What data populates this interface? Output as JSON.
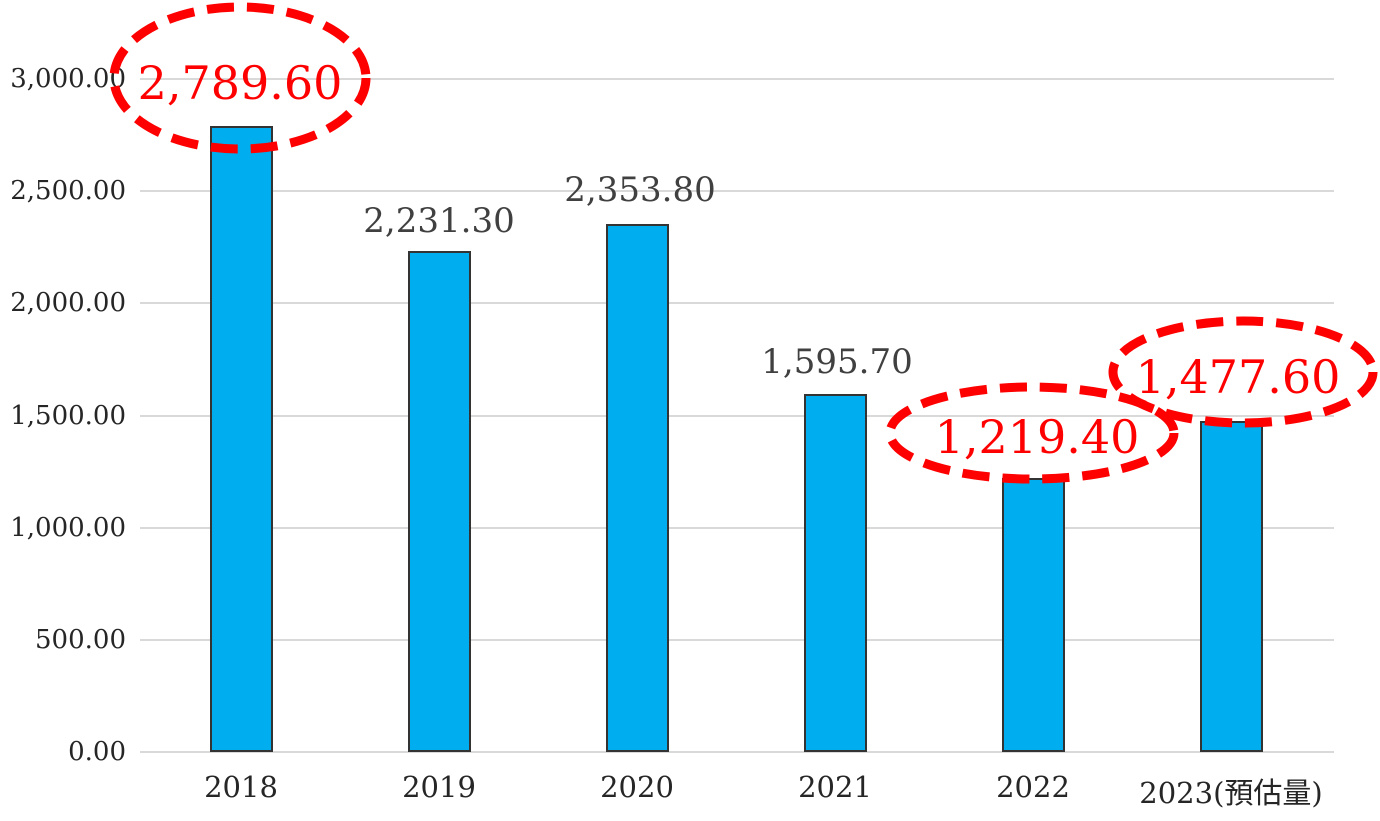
{
  "page": {
    "background_color": "#ffffff"
  },
  "colors": {
    "bar_fill": "#00aeef",
    "bar_border": "#333333",
    "gridline": "#d9d9d9",
    "axis_label": "#262626",
    "data_label": "#404040",
    "highlight_red": "#ff0000"
  },
  "chart_data": {
    "type": "bar",
    "title": "",
    "xlabel": "",
    "ylabel": "",
    "legend": "none",
    "grid": "horizontal",
    "categories": [
      "2018",
      "2019",
      "2020",
      "2021",
      "2022",
      "2023(預估量)"
    ],
    "values": [
      2789.6,
      2231.3,
      2353.8,
      1595.7,
      1219.4,
      1477.6
    ],
    "value_labels": [
      "2,789.60",
      "2,231.30",
      "2,353.80",
      "1,595.70",
      "1,219.40",
      "1,477.60"
    ],
    "y_ticks": [
      "3,000.00",
      "2,500.00",
      "2,000.00",
      "1,500.00",
      "1,000.00",
      "500.00",
      "0.00"
    ],
    "y_tick_values": [
      3000,
      2500,
      2000,
      1500,
      1000,
      500,
      0
    ],
    "ylim": [
      0,
      3000
    ],
    "highlighted_indices": [
      0,
      4,
      5
    ],
    "annotations": {
      "shape": "dashed-ellipse",
      "color": "#ff0000",
      "circled_value_labels": [
        "2,789.60",
        "1,219.40",
        "1,477.60"
      ]
    }
  }
}
